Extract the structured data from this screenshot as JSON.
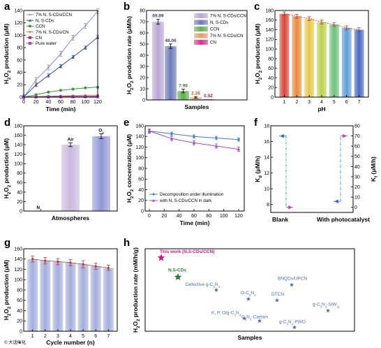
{
  "watermark": "© 大话催化",
  "colors": {
    "p7": "#8a8fcc",
    "nscd": "#2f4fa0",
    "ccn": "#2f9a3a",
    "cn7": "#e8823a",
    "cn": "#a0337a",
    "water": "#b03cc8",
    "pink": "#d4147e",
    "green": "#2e7d32",
    "star": "#4a6fb4",
    "blue": "#1f6fd0",
    "magenta": "#c040c0",
    "cyan": "#2aa6a6"
  },
  "chart_data": [
    {
      "id": "a",
      "letter": "a",
      "type": "line",
      "xlabel": "Time (min)",
      "ylabel": "H2O2 production (μM)",
      "xlim": [
        0,
        120
      ],
      "ylim": [
        0,
        140
      ],
      "xticks": [
        0,
        20,
        40,
        60,
        80,
        100,
        120
      ],
      "yticks": [
        0,
        20,
        40,
        60,
        80,
        100,
        120,
        140
      ],
      "legend_position": "top-left",
      "x": [
        0,
        20,
        40,
        60,
        80,
        100,
        120
      ],
      "series": [
        {
          "name": "7% N, S-CDs/CCN",
          "color": "#8a8fcc",
          "marker": "star",
          "values": [
            0,
            28,
            48,
            70,
            96,
            115,
            139
          ],
          "err": 4
        },
        {
          "name": "N, S-CDs",
          "color": "#2f4fa0",
          "marker": "triangle",
          "values": [
            0,
            20,
            35,
            50,
            65,
            80,
            97
          ],
          "err": 2.5
        },
        {
          "name": "CCN",
          "color": "#2f9a3a",
          "marker": "circle",
          "values": [
            0,
            4,
            8,
            11,
            13,
            15,
            16
          ],
          "err": 1
        },
        {
          "name": "7% N, S-CDs/CN",
          "color": "#e8823a",
          "marker": "diamond",
          "values": [
            0,
            1,
            1.5,
            2,
            2.5,
            3,
            3.2
          ],
          "err": 0.5
        },
        {
          "name": "CN",
          "color": "#a0337a",
          "marker": "square",
          "values": [
            0,
            0.5,
            0.8,
            1,
            1.1,
            1.2,
            1.4
          ],
          "err": 0.4
        },
        {
          "name": "Pure water",
          "color": "#b03cc8",
          "marker": "square",
          "values": [
            0,
            0.2,
            0.3,
            0.4,
            0.5,
            0.5,
            0.6
          ],
          "err": 0.3
        }
      ]
    },
    {
      "id": "b",
      "letter": "b",
      "type": "bar",
      "xlabel": "Samples",
      "ylabel": "H2O2 production rate (μM/h)",
      "ylim": [
        0,
        80
      ],
      "yticks": [
        0,
        10,
        20,
        30,
        40,
        50,
        60,
        70,
        80
      ],
      "legend_position": "top-right",
      "categories": [
        "7% N, S-CDs/CCN",
        "N, S-CDs",
        "CCN",
        "7% N, S-CDs/CN",
        "CN"
      ],
      "values": [
        69.89,
        48.06,
        7.96,
        2.26,
        0.52
      ],
      "value_labels": [
        "69.89",
        "48.06",
        "7.96",
        "2.26",
        "0.52"
      ],
      "colors": [
        "#b8a6d6",
        "#6c7ab8",
        "#5fae4f",
        "#e69a6a",
        "#d6338c"
      ],
      "label_colors": [
        "#3a3a7a",
        "#3a3a7a",
        "#2e7d32",
        "#c2561a",
        "#b01070"
      ],
      "errors": [
        2.2,
        2.0,
        1.6,
        0.6,
        0.2
      ]
    },
    {
      "id": "c",
      "letter": "c",
      "type": "bar",
      "xlabel": "pH",
      "ylabel": "H2O2 production (μM)",
      "ylim": [
        0,
        180
      ],
      "yticks": [
        0,
        20,
        40,
        60,
        80,
        100,
        120,
        140,
        160,
        180
      ],
      "categories": [
        "1",
        "2",
        "3",
        "4",
        "5",
        "6",
        "7"
      ],
      "values": [
        173,
        168,
        163,
        156,
        151,
        144,
        140
      ],
      "errors": [
        4,
        4,
        4,
        4,
        4,
        4,
        4
      ],
      "colors": [
        "#d7453a",
        "#ea8a3d",
        "#e8c84a",
        "#b9d14a",
        "#6cc07a",
        "#5a9fd6",
        "#4a68c4"
      ]
    },
    {
      "id": "d",
      "letter": "d",
      "type": "bar",
      "xlabel": "Atmospheres",
      "ylabel": "H2O2 production (μM)",
      "ylim": [
        0,
        180
      ],
      "yticks": [
        0,
        20,
        40,
        60,
        80,
        100,
        120,
        140,
        160,
        180
      ],
      "categories": [
        "N2",
        "Air",
        "O2"
      ],
      "values": [
        0.5,
        140,
        158
      ],
      "errors": [
        0,
        4,
        5
      ],
      "colors": [
        "#9aa5d8",
        "#c8b8dc",
        "#8f97d6"
      ]
    },
    {
      "id": "e",
      "letter": "e",
      "type": "line",
      "xlabel": "Time (min)",
      "ylabel": "H2O2 concentration (μM)",
      "xlim": [
        0,
        120
      ],
      "ylim": [
        0,
        160
      ],
      "xticks": [
        0,
        20,
        40,
        60,
        80,
        100,
        120
      ],
      "yticks": [
        0,
        20,
        40,
        60,
        80,
        100,
        120,
        140,
        160
      ],
      "legend_position": "bottom-center",
      "series": [
        {
          "name": "Decomposition under illumination",
          "color": "#3a7fd0",
          "marker": "diamond",
          "x": [
            0,
            30,
            60,
            90,
            120
          ],
          "values": [
            150,
            145,
            140,
            137,
            134
          ],
          "err": 3
        },
        {
          "name": "with N, S-CDs/CCN in dark",
          "color": "#b040c0",
          "marker": "triangle",
          "x": [
            0,
            30,
            60,
            90,
            120
          ],
          "values": [
            150,
            136,
            128,
            122,
            116
          ],
          "err": 4
        }
      ]
    },
    {
      "id": "f",
      "letter": "f",
      "type": "scatter",
      "categories": [
        "Blank",
        "With photocatalyst"
      ],
      "ylabel_left": "Kd (μM/h)",
      "ylabel_right": "Kf (μM/h)",
      "ylim_left": [
        7,
        18
      ],
      "yticks_left": [
        8,
        10,
        12,
        14,
        16,
        18
      ],
      "ylim_right": [
        -5,
        80
      ],
      "yticks_right": [
        0,
        10,
        20,
        30,
        40,
        50,
        60,
        70,
        80
      ],
      "kd": [
        16.7,
        8.4
      ],
      "kf": [
        0,
        70
      ]
    },
    {
      "id": "g",
      "letter": "g",
      "type": "bar",
      "xlabel": "Cycle number (n)",
      "ylabel": "H2O2 production (μM)",
      "ylim": [
        0,
        160
      ],
      "yticks": [
        0,
        20,
        40,
        60,
        80,
        100,
        120,
        140,
        160
      ],
      "categories": [
        "1",
        "2",
        "3",
        "4",
        "5",
        "6",
        "7"
      ],
      "values": [
        140,
        137,
        135,
        133,
        130,
        126,
        123
      ],
      "errors": [
        6,
        6,
        6,
        6,
        7,
        6,
        5
      ],
      "color": "#a4aedd"
    },
    {
      "id": "h",
      "letter": "h",
      "type": "scatter",
      "xlabel": "Samples",
      "ylabel": "H2O2 production rate (mM/h/g)",
      "points": [
        {
          "label": "This work (N,S-CDs/CCN)",
          "value": 2.85,
          "color": "#d4147e",
          "size": "large"
        },
        {
          "label": "N,S-CDs",
          "value": 2.1,
          "color": "#2e7d32",
          "size": "large"
        },
        {
          "label": "Defective g-C3N4",
          "value": 1.6,
          "color": "#4a6fb4",
          "size": "small"
        },
        {
          "label": "O-C3N4",
          "value": 1.25,
          "color": "#4a6fb4",
          "size": "small"
        },
        {
          "label": "K, P, O/g-C3N4",
          "value": 0.5,
          "color": "#4a6fb4",
          "size": "small"
        },
        {
          "label": "C3N4-Carbon",
          "value": 0.4,
          "color": "#4a6fb4",
          "size": "small"
        },
        {
          "label": "DTCN",
          "value": 1.2,
          "color": "#4a6fb4",
          "size": "small"
        },
        {
          "label": "BNQDs/UPCN",
          "value": 1.8,
          "color": "#4a6fb4",
          "size": "small"
        },
        {
          "label": "g-C3N4-PWO",
          "value": 0.15,
          "color": "#4a6fb4",
          "size": "small"
        },
        {
          "label": "g-C3N4-SiW11",
          "value": 0.8,
          "color": "#4a6fb4",
          "size": "small"
        }
      ]
    }
  ]
}
